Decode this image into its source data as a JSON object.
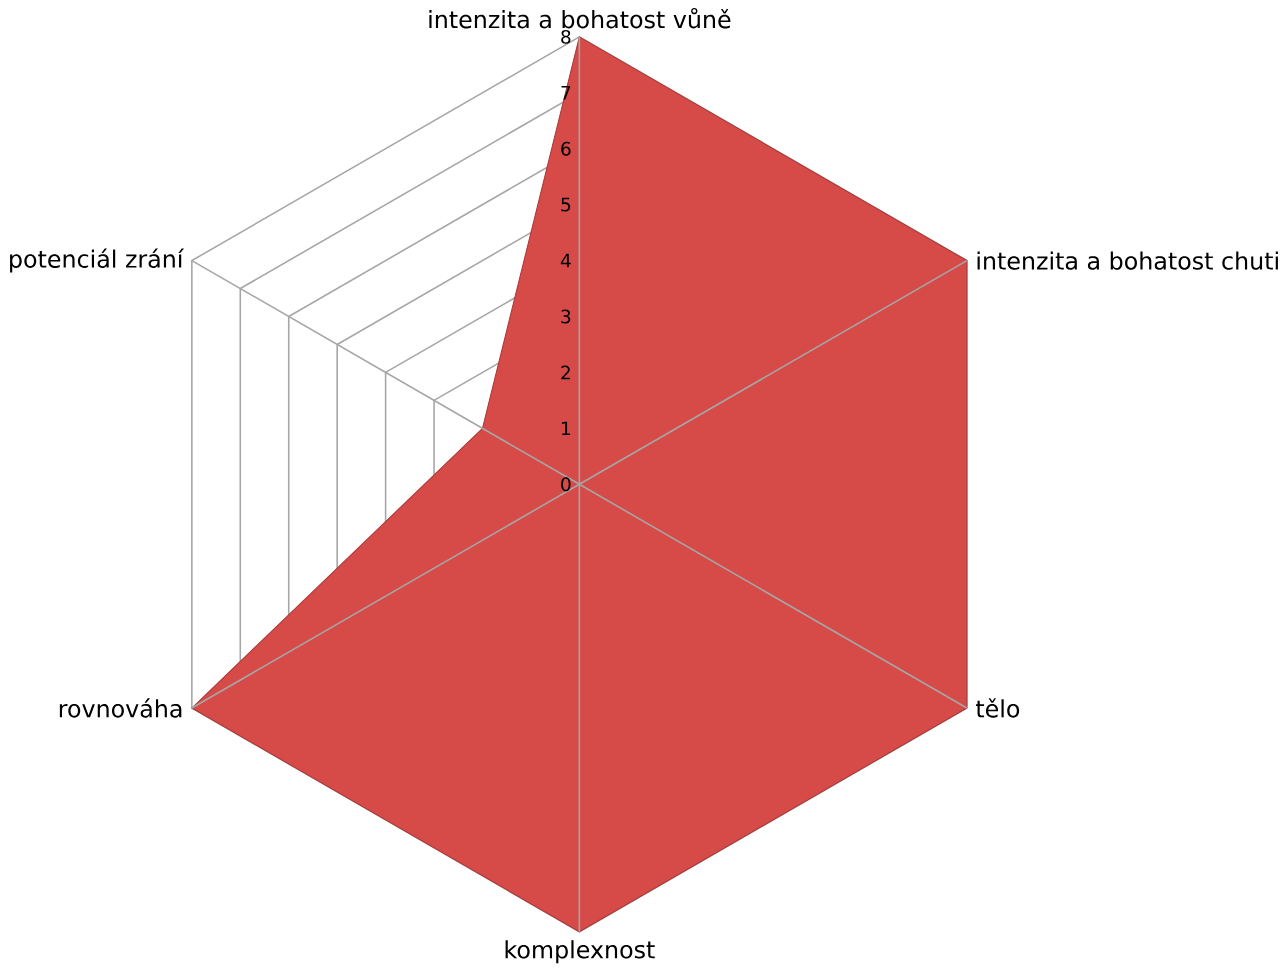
{
  "chart_data": {
    "type": "radar",
    "categories": [
      "intenzita a bohatost vůně",
      "intenzita a bohatost chuti",
      "tělo",
      "komplexnost",
      "rovnováha",
      "potenciál zrání"
    ],
    "series": [
      {
        "color": "#d64a48",
        "values": [
          8,
          8,
          8,
          8,
          8,
          2
        ]
      }
    ],
    "ylim": [
      0,
      8
    ],
    "yticks": [
      0,
      1,
      2,
      3,
      4,
      5,
      6,
      7,
      8
    ],
    "grid": true
  }
}
